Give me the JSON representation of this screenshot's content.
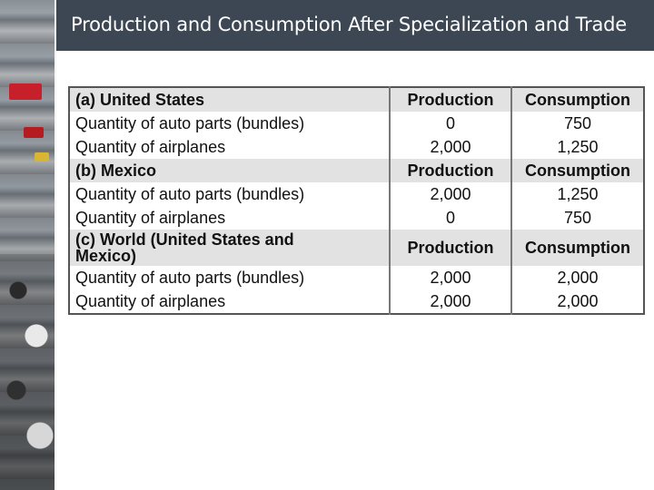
{
  "title": "Production and Consumption After Specialization and Trade",
  "sections": [
    {
      "heading": "(a) United States",
      "production_header": "Production",
      "consumption_header": "Consumption",
      "rows": [
        {
          "label": "Quantity of auto parts (bundles)",
          "production": "0",
          "consumption": "750"
        },
        {
          "label": "Quantity of airplanes",
          "production": "2,000",
          "consumption": "1,250"
        }
      ]
    },
    {
      "heading": "(b) Mexico",
      "production_header": "Production",
      "consumption_header": "Consumption",
      "rows": [
        {
          "label": "Quantity of auto parts (bundles)",
          "production": "2,000",
          "consumption": "1,250"
        },
        {
          "label": "Quantity of airplanes",
          "production": "0",
          "consumption": "750"
        }
      ]
    },
    {
      "heading": "(c) World (United States and Mexico)",
      "heading_line1": "(c) World (United States and",
      "heading_line2": "Mexico)",
      "production_header": "Production",
      "consumption_header": "Consumption",
      "rows": [
        {
          "label": "Quantity of auto parts (bundles)",
          "production": "2,000",
          "consumption": "2,000"
        },
        {
          "label": "Quantity of airplanes",
          "production": "2,000",
          "consumption": "2,000"
        }
      ]
    }
  ]
}
